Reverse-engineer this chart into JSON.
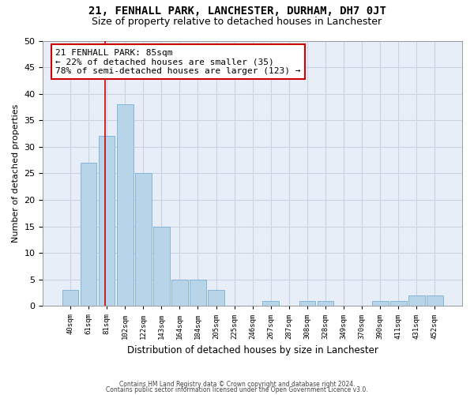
{
  "title": "21, FENHALL PARK, LANCHESTER, DURHAM, DH7 0JT",
  "subtitle": "Size of property relative to detached houses in Lanchester",
  "xlabel": "Distribution of detached houses by size in Lanchester",
  "ylabel": "Number of detached properties",
  "categories": [
    "40sqm",
    "61sqm",
    "81sqm",
    "102sqm",
    "122sqm",
    "143sqm",
    "164sqm",
    "184sqm",
    "205sqm",
    "225sqm",
    "246sqm",
    "267sqm",
    "287sqm",
    "308sqm",
    "328sqm",
    "349sqm",
    "370sqm",
    "390sqm",
    "411sqm",
    "431sqm",
    "452sqm"
  ],
  "values": [
    3,
    27,
    32,
    38,
    25,
    15,
    5,
    5,
    3,
    0,
    0,
    1,
    0,
    1,
    1,
    0,
    0,
    1,
    1,
    2,
    2
  ],
  "bar_color": "#b8d4e8",
  "bar_edgecolor": "#7aafd4",
  "annotation_line1": "21 FENHALL PARK: 85sqm",
  "annotation_line2": "← 22% of detached houses are smaller (35)",
  "annotation_line3": "78% of semi-detached houses are larger (123) →",
  "annotation_box_facecolor": "#ffffff",
  "annotation_box_edgecolor": "#cc0000",
  "red_line_color": "#cc0000",
  "ylim": [
    0,
    50
  ],
  "yticks": [
    0,
    5,
    10,
    15,
    20,
    25,
    30,
    35,
    40,
    45,
    50
  ],
  "footnote1": "Contains HM Land Registry data © Crown copyright and database right 2024.",
  "footnote2": "Contains public sector information licensed under the Open Government Licence v3.0.",
  "bg_color": "#e8eef8",
  "grid_color": "#c8d4e4",
  "title_fontsize": 10,
  "subtitle_fontsize": 9
}
